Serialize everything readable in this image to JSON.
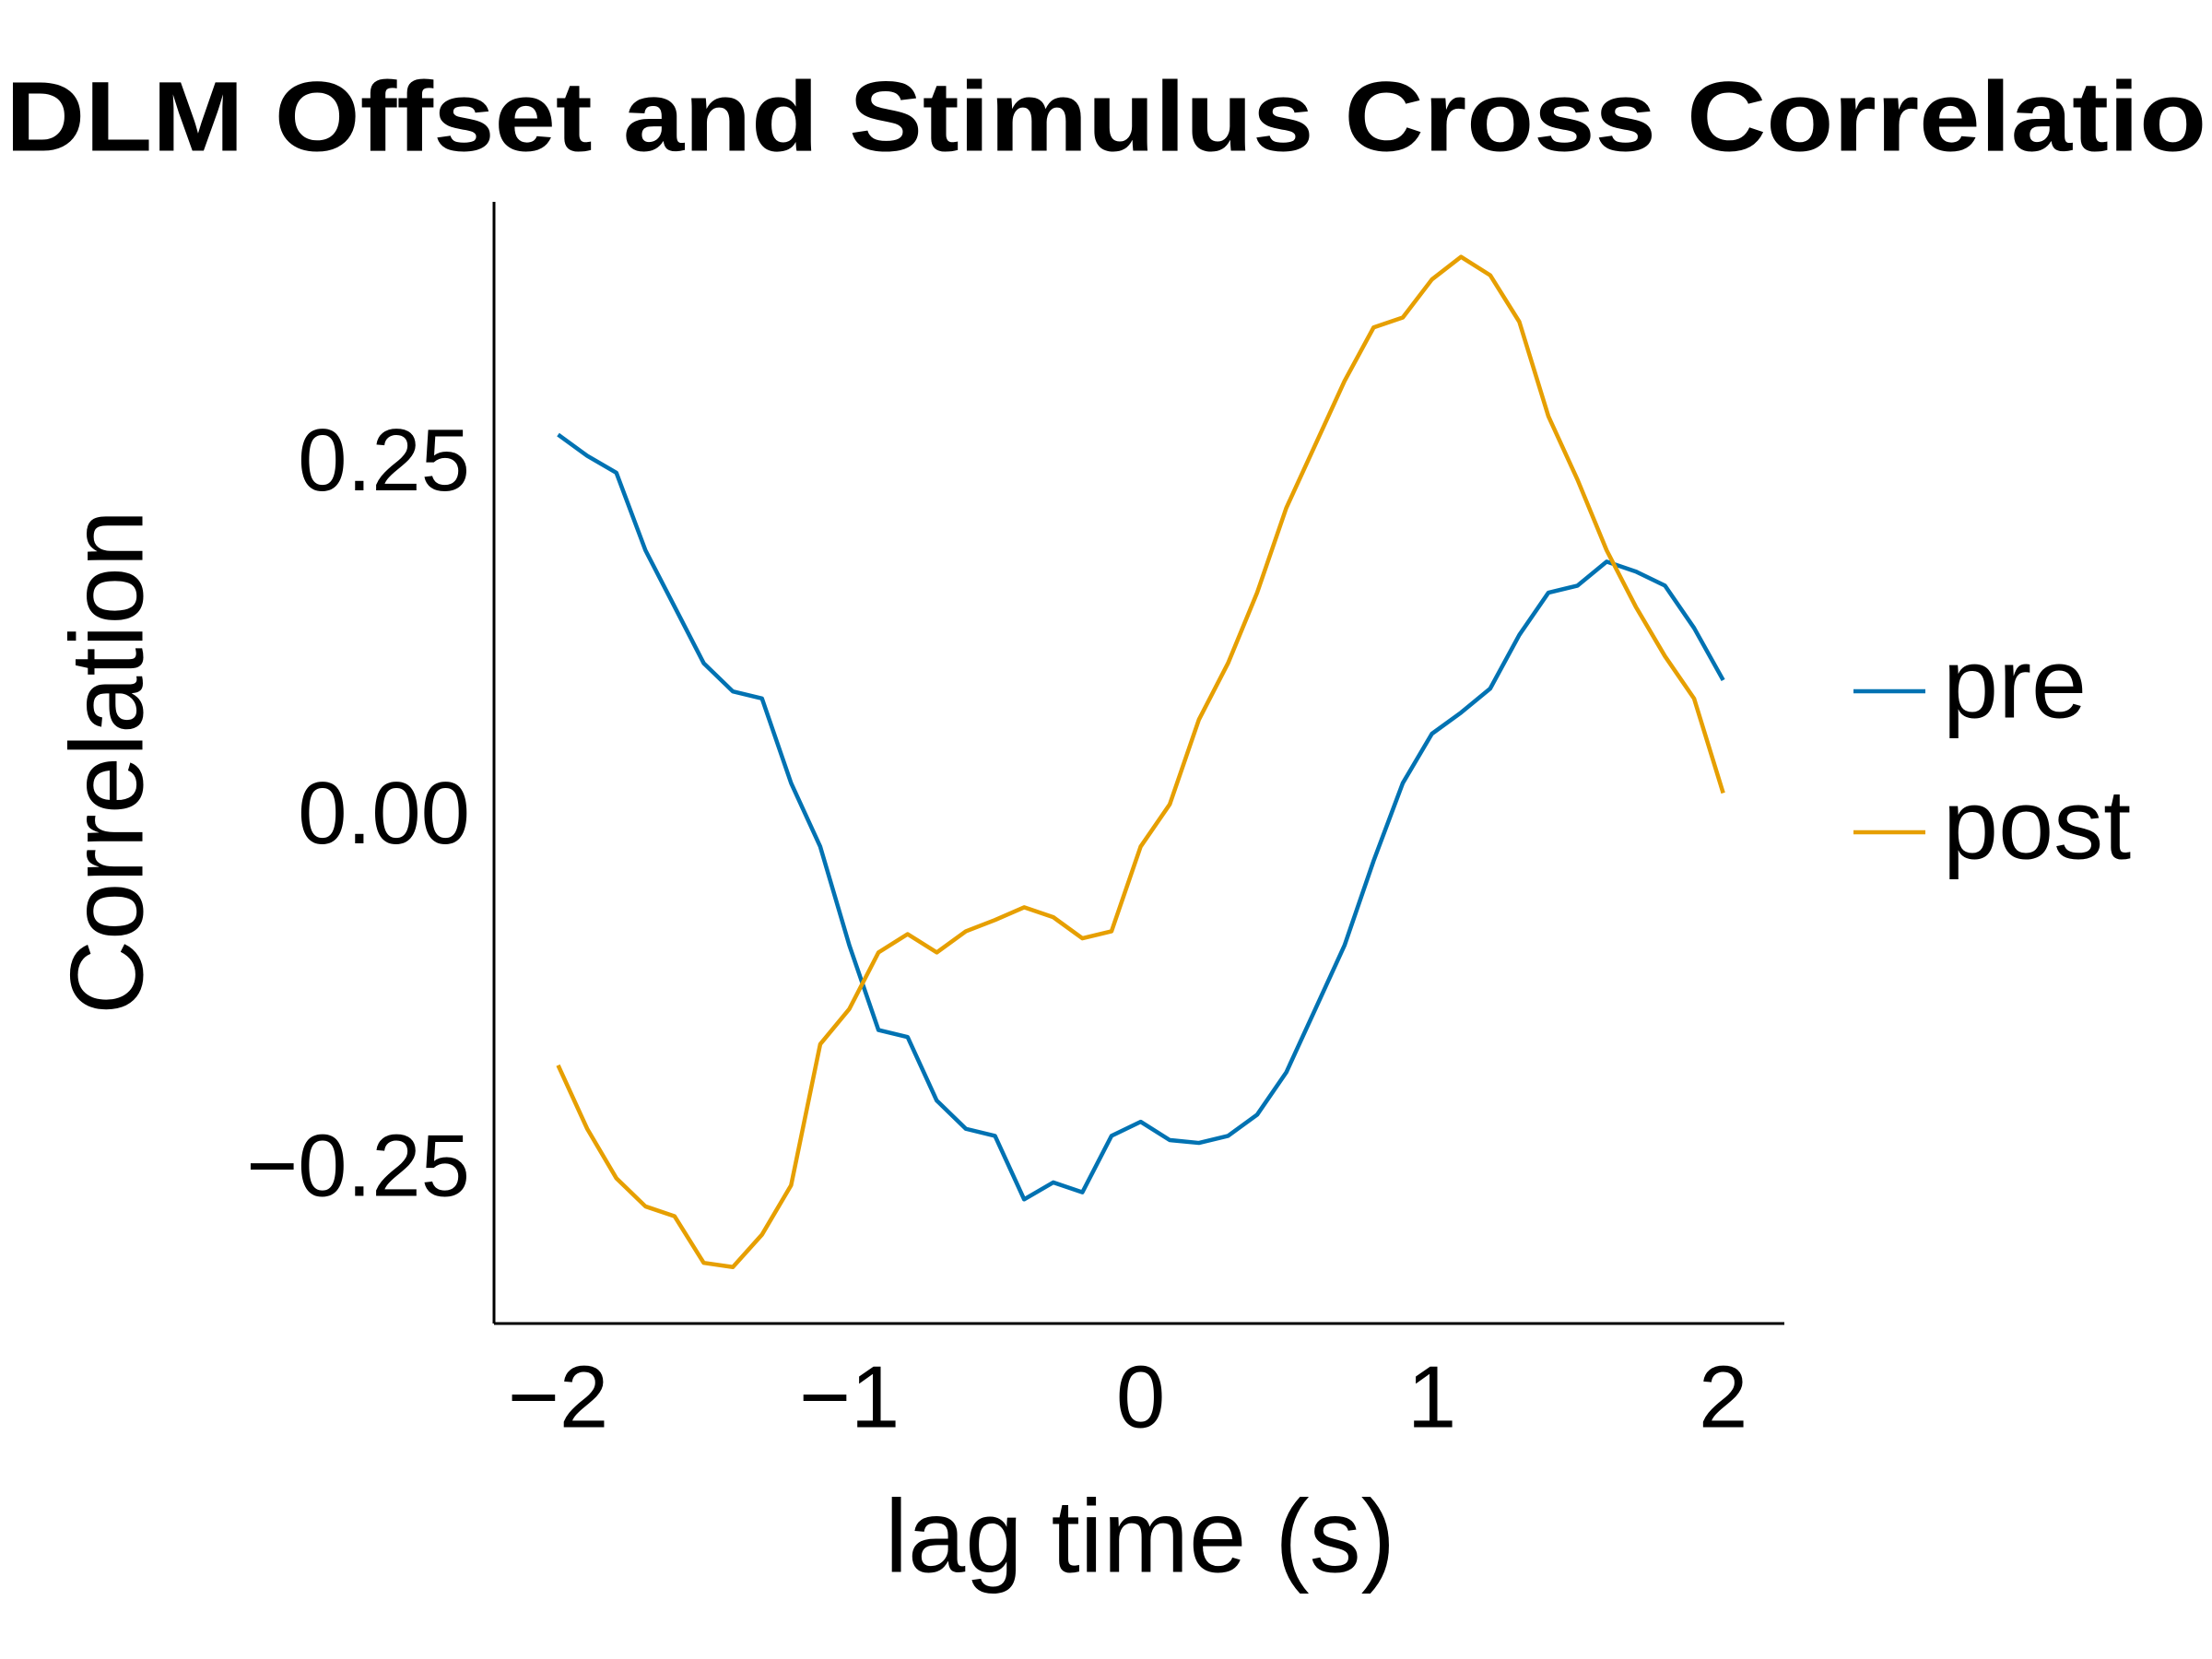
{
  "chart_data": {
    "type": "line",
    "title": "DLM Offset and Stimulus Cross Correlatio",
    "x_label": "lag time (s)",
    "y_label": "Correlation",
    "x": [
      -2,
      -1.9,
      -1.8,
      -1.7,
      -1.6,
      -1.5,
      -1.4,
      -1.3,
      -1.2,
      -1.1,
      -1,
      -0.9,
      -0.8,
      -0.7,
      -0.6,
      -0.5,
      -0.4,
      -0.3,
      -0.2,
      -0.1,
      0,
      0.1,
      0.2,
      0.3,
      0.4,
      0.5,
      0.6,
      0.7,
      0.8,
      0.9,
      1,
      1.1,
      1.2,
      1.3,
      1.4,
      1.5,
      1.6,
      1.7,
      1.8,
      1.9,
      2
    ],
    "series": [
      {
        "name": "pre",
        "color": "#0072b2",
        "values": [
          0.273,
          0.258,
          0.246,
          0.191,
          0.151,
          0.111,
          0.091,
          0.086,
          0.026,
          -0.019,
          -0.089,
          -0.149,
          -0.154,
          -0.199,
          -0.219,
          -0.224,
          -0.269,
          -0.257,
          -0.264,
          -0.224,
          -0.214,
          -0.227,
          -0.229,
          -0.224,
          -0.209,
          -0.179,
          -0.134,
          -0.089,
          -0.029,
          0.026,
          0.061,
          0.076,
          0.093,
          0.131,
          0.161,
          0.166,
          0.183,
          0.176,
          0.166,
          0.136,
          0.099
        ]
      },
      {
        "name": "post",
        "color": "#e69f00",
        "values": [
          -0.174,
          -0.219,
          -0.254,
          -0.274,
          -0.281,
          -0.314,
          -0.317,
          -0.294,
          -0.259,
          -0.159,
          -0.134,
          -0.094,
          -0.081,
          -0.094,
          -0.079,
          -0.071,
          -0.062,
          -0.069,
          -0.084,
          -0.079,
          -0.019,
          0.011,
          0.071,
          0.111,
          0.161,
          0.221,
          0.266,
          0.311,
          0.349,
          0.356,
          0.383,
          0.399,
          0.386,
          0.353,
          0.286,
          0.241,
          0.191,
          0.151,
          0.116,
          0.086,
          0.019
        ]
      }
    ],
    "xlim": [
      -2.22,
      2.21
    ],
    "ylim": [
      -0.357,
      0.438
    ],
    "xticks": [
      {
        "value": -2,
        "label": "−2"
      },
      {
        "value": -1,
        "label": "−1"
      },
      {
        "value": 0,
        "label": "0"
      },
      {
        "value": 1,
        "label": "1"
      },
      {
        "value": 2,
        "label": "2"
      }
    ],
    "yticks": [
      {
        "value": -0.25,
        "label": "−0.25"
      },
      {
        "value": 0,
        "label": "0.00"
      },
      {
        "value": 0.25,
        "label": "0.25"
      }
    ],
    "grid": false,
    "legend": "right"
  }
}
